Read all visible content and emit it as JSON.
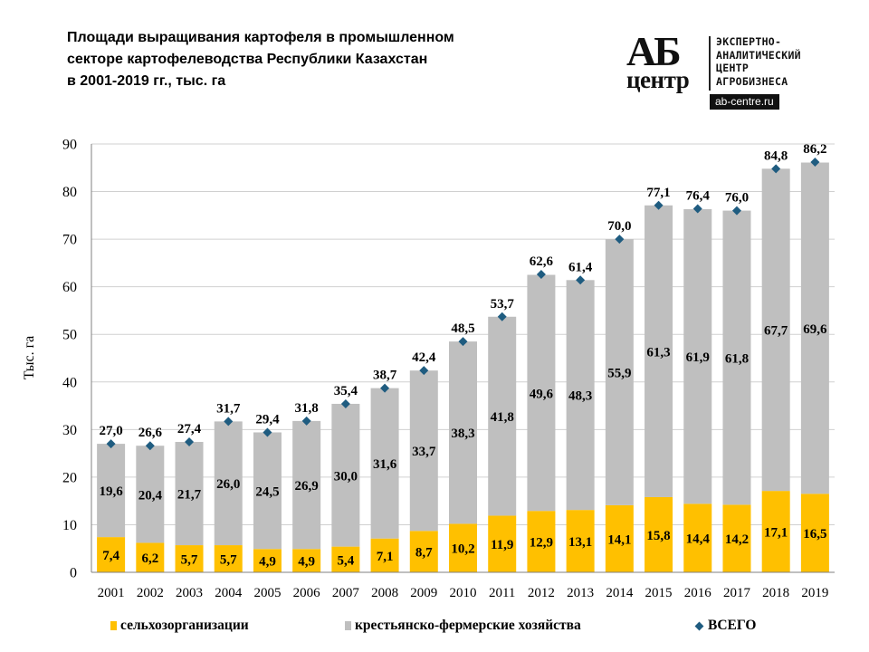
{
  "title": {
    "lines": [
      "Площади выращивания картофеля в промышленном",
      "секторе картофелеводства  Республики Казахстан",
      "в 2001-2019 гг., тыс. га"
    ]
  },
  "logo": {
    "mark_top": "АБ",
    "mark_bottom": "центр",
    "text_lines": [
      "ЭКСПЕРТНО-",
      "АНАЛИТИЧЕСКИЙ",
      "ЦЕНТР",
      "АГРОБИЗНЕСА"
    ],
    "url": "ab-centre.ru"
  },
  "colors": {
    "agri_orgs": "#FFC000",
    "farms": "#BFBFBF",
    "total_marker": "#1F5C80",
    "grid": "#D0D0D0",
    "axis": "#808080"
  },
  "chart_data": {
    "type": "bar",
    "stacked": true,
    "title": "Площади выращивания картофеля в промышленном секторе картофелеводства  Республики Казахстан в 2001-2019 гг., тыс. га",
    "xlabel": "",
    "ylabel": "Тыс. га",
    "ylim": [
      0,
      90
    ],
    "yticks": [
      "0",
      "10",
      "20",
      "30",
      "40",
      "50",
      "60",
      "70",
      "80",
      "90"
    ],
    "ytick_values": [
      0,
      10,
      20,
      30,
      40,
      50,
      60,
      70,
      80,
      90
    ],
    "grid": true,
    "legend_position": "bottom",
    "categories": [
      "2001",
      "2002",
      "2003",
      "2004",
      "2005",
      "2006",
      "2007",
      "2008",
      "2009",
      "2010",
      "2011",
      "2012",
      "2013",
      "2014",
      "2015",
      "2016",
      "2017",
      "2018",
      "2019"
    ],
    "series": [
      {
        "name": "сельхозорганизации",
        "kind": "bar",
        "values": [
          7.4,
          6.2,
          5.7,
          5.7,
          4.9,
          4.9,
          5.4,
          7.1,
          8.7,
          10.2,
          11.9,
          12.9,
          13.1,
          14.1,
          15.8,
          14.4,
          14.2,
          17.1,
          16.5
        ],
        "labels": [
          "7,4",
          "6,2",
          "5,7",
          "5,7",
          "4,9",
          "4,9",
          "5,4",
          "7,1",
          "8,7",
          "10,2",
          "11,9",
          "12,9",
          "13,1",
          "14,1",
          "15,8",
          "14,4",
          "14,2",
          "17,1",
          "16,5"
        ]
      },
      {
        "name": "крестьянско-фермерские хозяйства",
        "kind": "bar",
        "values": [
          19.6,
          20.4,
          21.7,
          26.0,
          24.5,
          26.9,
          30.0,
          31.6,
          33.7,
          38.3,
          41.8,
          49.6,
          48.3,
          55.9,
          61.3,
          61.9,
          61.8,
          67.7,
          69.6
        ],
        "labels": [
          "19,6",
          "20,4",
          "21,7",
          "26,0",
          "24,5",
          "26,9",
          "30,0",
          "31,6",
          "33,7",
          "38,3",
          "41,8",
          "49,6",
          "48,3",
          "55,9",
          "61,3",
          "61,9",
          "61,8",
          "67,7",
          "69,6"
        ]
      },
      {
        "name": "ВСЕГО",
        "kind": "marker",
        "values": [
          27.0,
          26.6,
          27.4,
          31.7,
          29.4,
          31.8,
          35.4,
          38.7,
          42.4,
          48.5,
          53.7,
          62.6,
          61.4,
          70.0,
          77.1,
          76.4,
          76.0,
          84.8,
          86.2
        ],
        "labels": [
          "27,0",
          "26,6",
          "27,4",
          "31,7",
          "29,4",
          "31,8",
          "35,4",
          "38,7",
          "42,4",
          "48,5",
          "53,7",
          "62,6",
          "61,4",
          "70,0",
          "77,1",
          "76,4",
          "76,0",
          "84,8",
          "86,2"
        ]
      }
    ]
  }
}
